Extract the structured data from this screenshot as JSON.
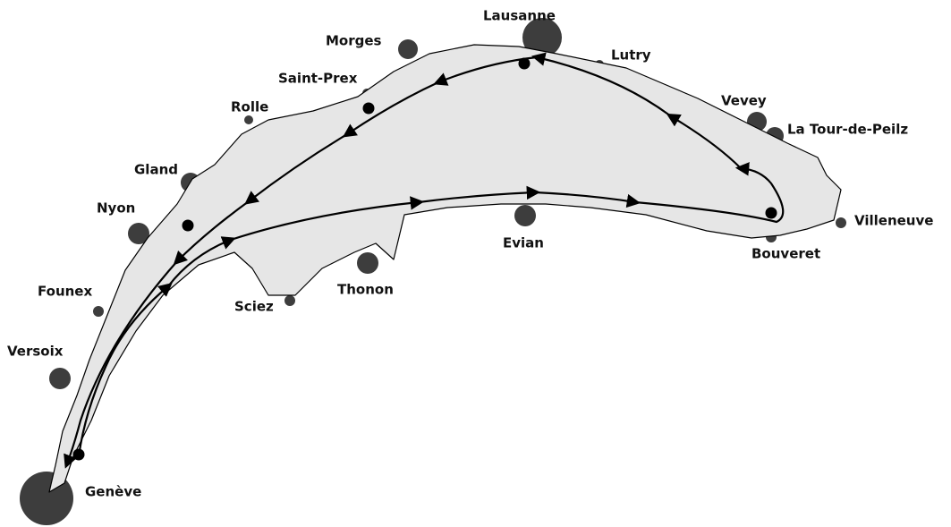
{
  "towns": [
    "Lausanne",
    "Morges",
    "Lutry",
    "Saint-Prex",
    "Vevey",
    "La Tour-de-Peilz",
    "Rolle",
    "Gland",
    "Nyon",
    "Villeneuve",
    "Evian",
    "Bouveret",
    "Thonon",
    "Sciez",
    "Founex",
    "Versoix",
    "Genève"
  ]
}
